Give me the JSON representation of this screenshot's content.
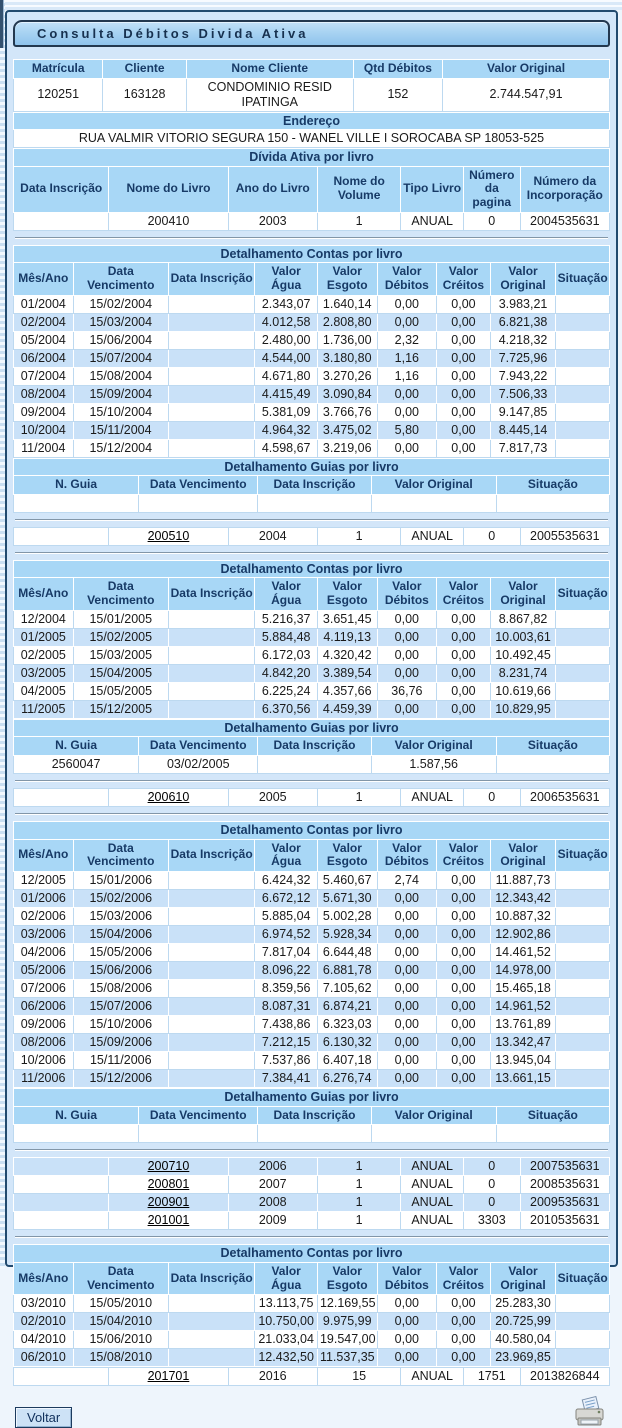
{
  "title_bar": {
    "title": "Consulta Débitos Divida Ativa"
  },
  "client_table": {
    "headers": [
      "Matrícula",
      "Cliente",
      "Nome Cliente",
      "Qtd Débitos",
      "Valor Original"
    ],
    "row": [
      "120251",
      "163128",
      "CONDOMINIO RESID IPATINGA",
      "152",
      "2.744.547,91"
    ]
  },
  "endereco": {
    "label": "Endereço",
    "value": "RUA VALMIR VITORIO SEGURA 150 - WANEL VILLE I SOROCABA SP 18053-525"
  },
  "tables": {
    "divida": {
      "title": "Dívida Ativa por livro",
      "headers": [
        "Data Inscrição",
        "Nome do Livro",
        "Ano do Livro",
        "Nome do Volume",
        "Tipo Livro",
        "Número da pagina",
        "Número da Incorporação"
      ]
    },
    "contas": {
      "title": "Detalhamento Contas por livro",
      "headers": [
        "Mês/Ano",
        "Data Vencimento",
        "Data Inscrição",
        "Valor Água",
        "Valor Esgoto",
        "Valor Débitos",
        "Valor Créitos",
        "Valor Original",
        "Situação"
      ]
    },
    "guias": {
      "title": "Detalhamento Guias por livro",
      "headers": [
        "N. Guia",
        "Data Vencimento",
        "Data Inscrição",
        "Valor Original",
        "Situação"
      ]
    }
  },
  "sections": [
    {
      "type": "divida",
      "rows": [
        [
          "",
          "200410",
          "2003",
          "1",
          "ANUAL",
          "0",
          "2004535631"
        ]
      ]
    },
    {
      "type": "hr"
    },
    {
      "type": "contas",
      "rows": [
        [
          "01/2004",
          "15/02/2004",
          "",
          "2.343,07",
          "1.640,14",
          "0,00",
          "0,00",
          "3.983,21",
          ""
        ],
        [
          "02/2004",
          "15/03/2004",
          "",
          "4.012,58",
          "2.808,80",
          "0,00",
          "0,00",
          "6.821,38",
          ""
        ],
        [
          "05/2004",
          "15/06/2004",
          "",
          "2.480,00",
          "1.736,00",
          "2,32",
          "0,00",
          "4.218,32",
          ""
        ],
        [
          "06/2004",
          "15/07/2004",
          "",
          "4.544,00",
          "3.180,80",
          "1,16",
          "0,00",
          "7.725,96",
          ""
        ],
        [
          "07/2004",
          "15/08/2004",
          "",
          "4.671,80",
          "3.270,26",
          "1,16",
          "0,00",
          "7.943,22",
          ""
        ],
        [
          "08/2004",
          "15/09/2004",
          "",
          "4.415,49",
          "3.090,84",
          "0,00",
          "0,00",
          "7.506,33",
          ""
        ],
        [
          "09/2004",
          "15/10/2004",
          "",
          "5.381,09",
          "3.766,76",
          "0,00",
          "0,00",
          "9.147,85",
          ""
        ],
        [
          "10/2004",
          "15/11/2004",
          "",
          "4.964,32",
          "3.475,02",
          "5,80",
          "0,00",
          "8.445,14",
          ""
        ],
        [
          "11/2004",
          "15/12/2004",
          "",
          "4.598,67",
          "3.219,06",
          "0,00",
          "0,00",
          "7.817,73",
          ""
        ]
      ]
    },
    {
      "type": "guias",
      "rows": [
        [
          "",
          "",
          "",
          "",
          ""
        ]
      ]
    },
    {
      "type": "hr"
    },
    {
      "type": "livro",
      "rows": [
        [
          "",
          "200510",
          "2004",
          "1",
          "ANUAL",
          "0",
          "2005535631"
        ]
      ]
    },
    {
      "type": "hr"
    },
    {
      "type": "contas",
      "rows": [
        [
          "12/2004",
          "15/01/2005",
          "",
          "5.216,37",
          "3.651,45",
          "0,00",
          "0,00",
          "8.867,82",
          ""
        ],
        [
          "01/2005",
          "15/02/2005",
          "",
          "5.884,48",
          "4.119,13",
          "0,00",
          "0,00",
          "10.003,61",
          ""
        ],
        [
          "02/2005",
          "15/03/2005",
          "",
          "6.172,03",
          "4.320,42",
          "0,00",
          "0,00",
          "10.492,45",
          ""
        ],
        [
          "03/2005",
          "15/04/2005",
          "",
          "4.842,20",
          "3.389,54",
          "0,00",
          "0,00",
          "8.231,74",
          ""
        ],
        [
          "04/2005",
          "15/05/2005",
          "",
          "6.225,24",
          "4.357,66",
          "36,76",
          "0,00",
          "10.619,66",
          ""
        ],
        [
          "11/2005",
          "15/12/2005",
          "",
          "6.370,56",
          "4.459,39",
          "0,00",
          "0,00",
          "10.829,95",
          ""
        ]
      ]
    },
    {
      "type": "guias",
      "rows": [
        [
          "2560047",
          "03/02/2005",
          "",
          "1.587,56",
          ""
        ]
      ]
    },
    {
      "type": "hr"
    },
    {
      "type": "livro",
      "rows": [
        [
          "",
          "200610",
          "2005",
          "1",
          "ANUAL",
          "0",
          "2006535631"
        ]
      ]
    },
    {
      "type": "hr"
    },
    {
      "type": "contas",
      "rows": [
        [
          "12/2005",
          "15/01/2006",
          "",
          "6.424,32",
          "5.460,67",
          "2,74",
          "0,00",
          "11.887,73",
          ""
        ],
        [
          "01/2006",
          "15/02/2006",
          "",
          "6.672,12",
          "5.671,30",
          "0,00",
          "0,00",
          "12.343,42",
          ""
        ],
        [
          "02/2006",
          "15/03/2006",
          "",
          "5.885,04",
          "5.002,28",
          "0,00",
          "0,00",
          "10.887,32",
          ""
        ],
        [
          "03/2006",
          "15/04/2006",
          "",
          "6.974,52",
          "5.928,34",
          "0,00",
          "0,00",
          "12.902,86",
          ""
        ],
        [
          "04/2006",
          "15/05/2006",
          "",
          "7.817,04",
          "6.644,48",
          "0,00",
          "0,00",
          "14.461,52",
          ""
        ],
        [
          "05/2006",
          "15/06/2006",
          "",
          "8.096,22",
          "6.881,78",
          "0,00",
          "0,00",
          "14.978,00",
          ""
        ],
        [
          "07/2006",
          "15/08/2006",
          "",
          "8.359,56",
          "7.105,62",
          "0,00",
          "0,00",
          "15.465,18",
          ""
        ],
        [
          "06/2006",
          "15/07/2006",
          "",
          "8.087,31",
          "6.874,21",
          "0,00",
          "0,00",
          "14.961,52",
          ""
        ],
        [
          "09/2006",
          "15/10/2006",
          "",
          "7.438,86",
          "6.323,03",
          "0,00",
          "0,00",
          "13.761,89",
          ""
        ],
        [
          "08/2006",
          "15/09/2006",
          "",
          "7.212,15",
          "6.130,32",
          "0,00",
          "0,00",
          "13.342,47",
          ""
        ],
        [
          "10/2006",
          "15/11/2006",
          "",
          "7.537,86",
          "6.407,18",
          "0,00",
          "0,00",
          "13.945,04",
          ""
        ],
        [
          "11/2006",
          "15/12/2006",
          "",
          "7.384,41",
          "6.276,74",
          "0,00",
          "0,00",
          "13.661,15",
          ""
        ]
      ]
    },
    {
      "type": "guias",
      "rows": [
        [
          "",
          "",
          "",
          "",
          ""
        ]
      ]
    },
    {
      "type": "hr"
    },
    {
      "type": "livro",
      "rows": [
        [
          "",
          "200710",
          "2006",
          "1",
          "ANUAL",
          "0",
          "2007535631"
        ],
        [
          "",
          "200801",
          "2007",
          "1",
          "ANUAL",
          "0",
          "2008535631"
        ],
        [
          "",
          "200901",
          "2008",
          "1",
          "ANUAL",
          "0",
          "2009535631"
        ],
        [
          "",
          "201001",
          "2009",
          "1",
          "ANUAL",
          "3303",
          "2010535631"
        ]
      ]
    },
    {
      "type": "hr"
    },
    {
      "type": "contas",
      "rows": [
        [
          "03/2010",
          "15/05/2010",
          "",
          "13.113,75",
          "12.169,55",
          "0,00",
          "0,00",
          "25.283,30",
          ""
        ],
        [
          "02/2010",
          "15/04/2010",
          "",
          "10.750,00",
          "9.975,99",
          "0,00",
          "0,00",
          "20.725,99",
          ""
        ],
        [
          "04/2010",
          "15/06/2010",
          "",
          "21.033,04",
          "19.547,00",
          "0,00",
          "0,00",
          "40.580,04",
          ""
        ],
        [
          "06/2010",
          "15/08/2010",
          "",
          "12.432,50",
          "11.537,35",
          "0,00",
          "0,00",
          "23.969,85",
          ""
        ]
      ]
    },
    {
      "type": "livro",
      "rows": [
        [
          "",
          "201701",
          "2016",
          "15",
          "ANUAL",
          "1751",
          "2013826844"
        ]
      ]
    }
  ],
  "footer": {
    "voltar_label": "Voltar",
    "print_icon": "printer-icon"
  },
  "colors": {
    "page_bg": "#d3e6f9",
    "header_blue": "#a8d7f6",
    "row_alt_blue": "#c9e1f8",
    "border_navy": "#224a6e",
    "header_text": "#173a66",
    "link_color": "#000000"
  }
}
